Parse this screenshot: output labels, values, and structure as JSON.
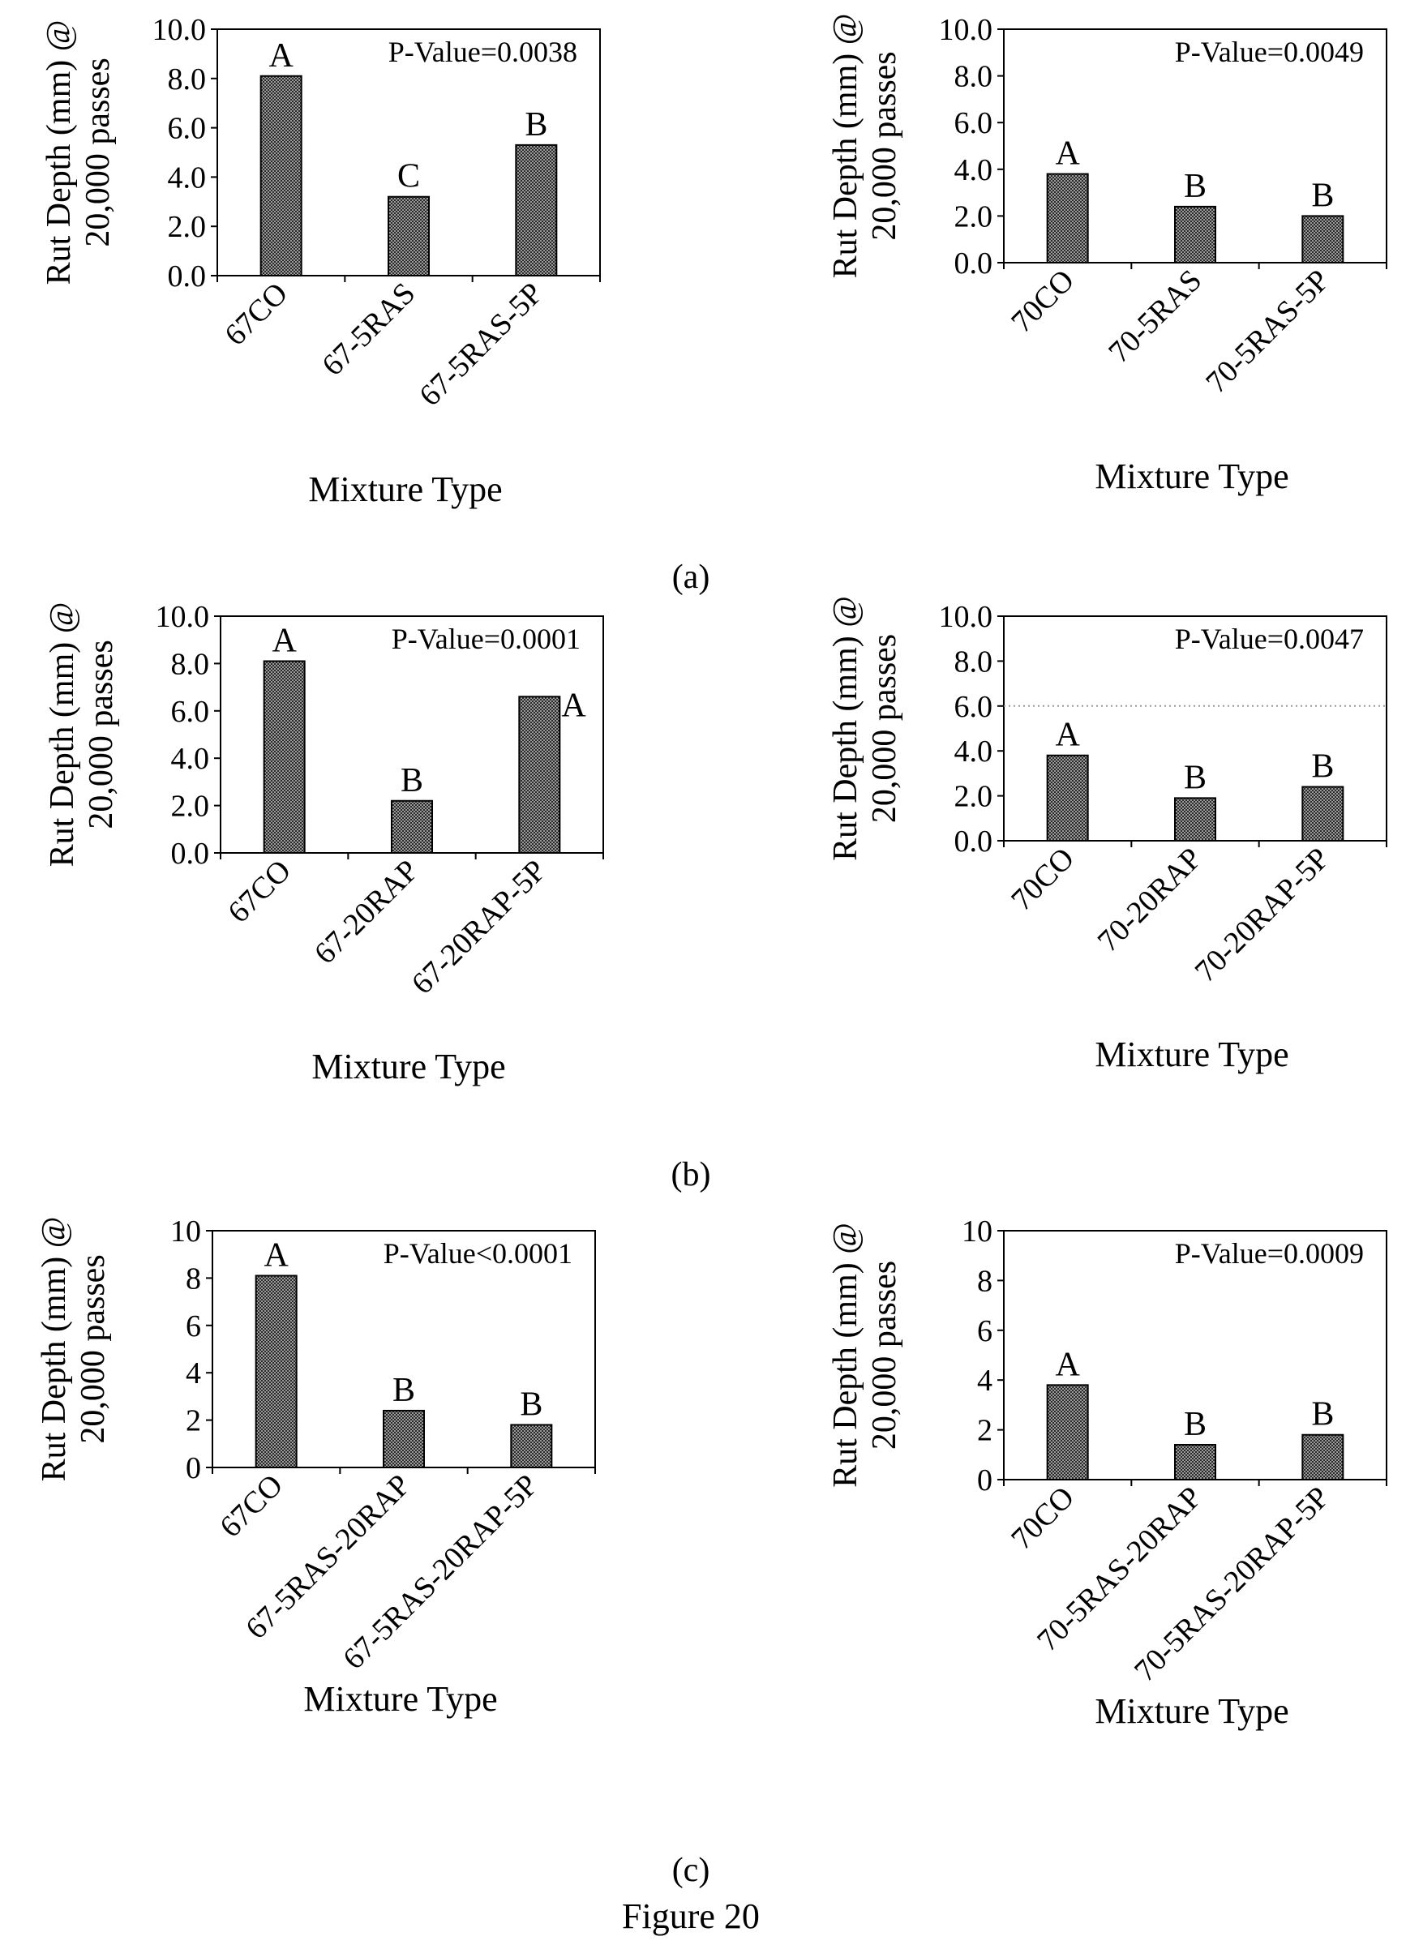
{
  "groups": [
    "(a)",
    "(b)",
    "(c)"
  ],
  "caption": "Figure 20",
  "chart_data": [
    {
      "type": "bar",
      "group": "(a)",
      "categories": [
        "67CO",
        "67-5RAS",
        "67-5RAS-5P"
      ],
      "values": [
        8.1,
        3.2,
        5.3
      ],
      "significance": [
        "A",
        "C",
        "B"
      ],
      "annotation": "P-Value=0.0038",
      "ylabel": [
        "Rut Depth (mm) @",
        "20,000 passes"
      ],
      "xlabel": "Mixture Type",
      "ylim": [
        0,
        10
      ],
      "yticks": [
        "0.0",
        "2.0",
        "4.0",
        "6.0",
        "8.0",
        "10.0"
      ],
      "grid": false
    },
    {
      "type": "bar",
      "group": "(a)",
      "categories": [
        "70CO",
        "70-5RAS",
        "70-5RAS-5P"
      ],
      "values": [
        3.8,
        2.4,
        2.0
      ],
      "significance": [
        "A",
        "B",
        "B"
      ],
      "annotation": "P-Value=0.0049",
      "ylabel": [
        "Rut Depth (mm) @",
        "20,000 passes"
      ],
      "xlabel": "Mixture Type",
      "ylim": [
        0,
        10
      ],
      "yticks": [
        "0.0",
        "2.0",
        "4.0",
        "6.0",
        "8.0",
        "10.0"
      ],
      "grid": false
    },
    {
      "type": "bar",
      "group": "(b)",
      "categories": [
        "67CO",
        "67-20RAP",
        "67-20RAP-5P"
      ],
      "values": [
        8.1,
        2.2,
        6.6
      ],
      "significance": [
        "A",
        "B",
        "A"
      ],
      "annotation": "P-Value=0.0001",
      "ylabel": [
        "Rut Depth (mm) @",
        "20,000 passes"
      ],
      "xlabel": "Mixture Type",
      "ylim": [
        0,
        10
      ],
      "yticks": [
        "0.0",
        "2.0",
        "4.0",
        "6.0",
        "8.0",
        "10.0"
      ],
      "grid": false
    },
    {
      "type": "bar",
      "group": "(b)",
      "categories": [
        "70CO",
        "70-20RAP",
        "70-20RAP-5P"
      ],
      "values": [
        3.8,
        1.9,
        2.4
      ],
      "significance": [
        "A",
        "B",
        "B"
      ],
      "annotation": "P-Value=0.0047",
      "ylabel": [
        "Rut Depth (mm) @",
        "20,000 passes"
      ],
      "xlabel": "Mixture Type",
      "ylim": [
        0,
        10
      ],
      "yticks": [
        "0.0",
        "2.0",
        "4.0",
        "6.0",
        "8.0",
        "10.0"
      ],
      "grid": false,
      "reference_line": 6.0
    },
    {
      "type": "bar",
      "group": "(c)",
      "categories": [
        "67CO",
        "67-5RAS-20RAP",
        "67-5RAS-20RAP-5P"
      ],
      "values": [
        8.1,
        2.4,
        1.8
      ],
      "significance": [
        "A",
        "B",
        "B"
      ],
      "annotation": "P-Value<0.0001",
      "ylabel": [
        "Rut Depth (mm) @",
        "20,000 passes"
      ],
      "xlabel": "Mixture Type",
      "ylim": [
        0,
        10
      ],
      "yticks": [
        "0",
        "2",
        "4",
        "6",
        "8",
        "10"
      ],
      "grid": false
    },
    {
      "type": "bar",
      "group": "(c)",
      "categories": [
        "70CO",
        "70-5RAS-20RAP",
        "70-5RAS-20RAP-5P"
      ],
      "values": [
        3.8,
        1.4,
        1.8
      ],
      "significance": [
        "A",
        "B",
        "B"
      ],
      "annotation": "P-Value=0.0009",
      "ylabel": [
        "Rut Depth (mm) @",
        "20,000 passes"
      ],
      "xlabel": "Mixture Type",
      "ylim": [
        0,
        10
      ],
      "yticks": [
        "0",
        "2",
        "4",
        "6",
        "8",
        "10"
      ],
      "grid": false
    }
  ]
}
